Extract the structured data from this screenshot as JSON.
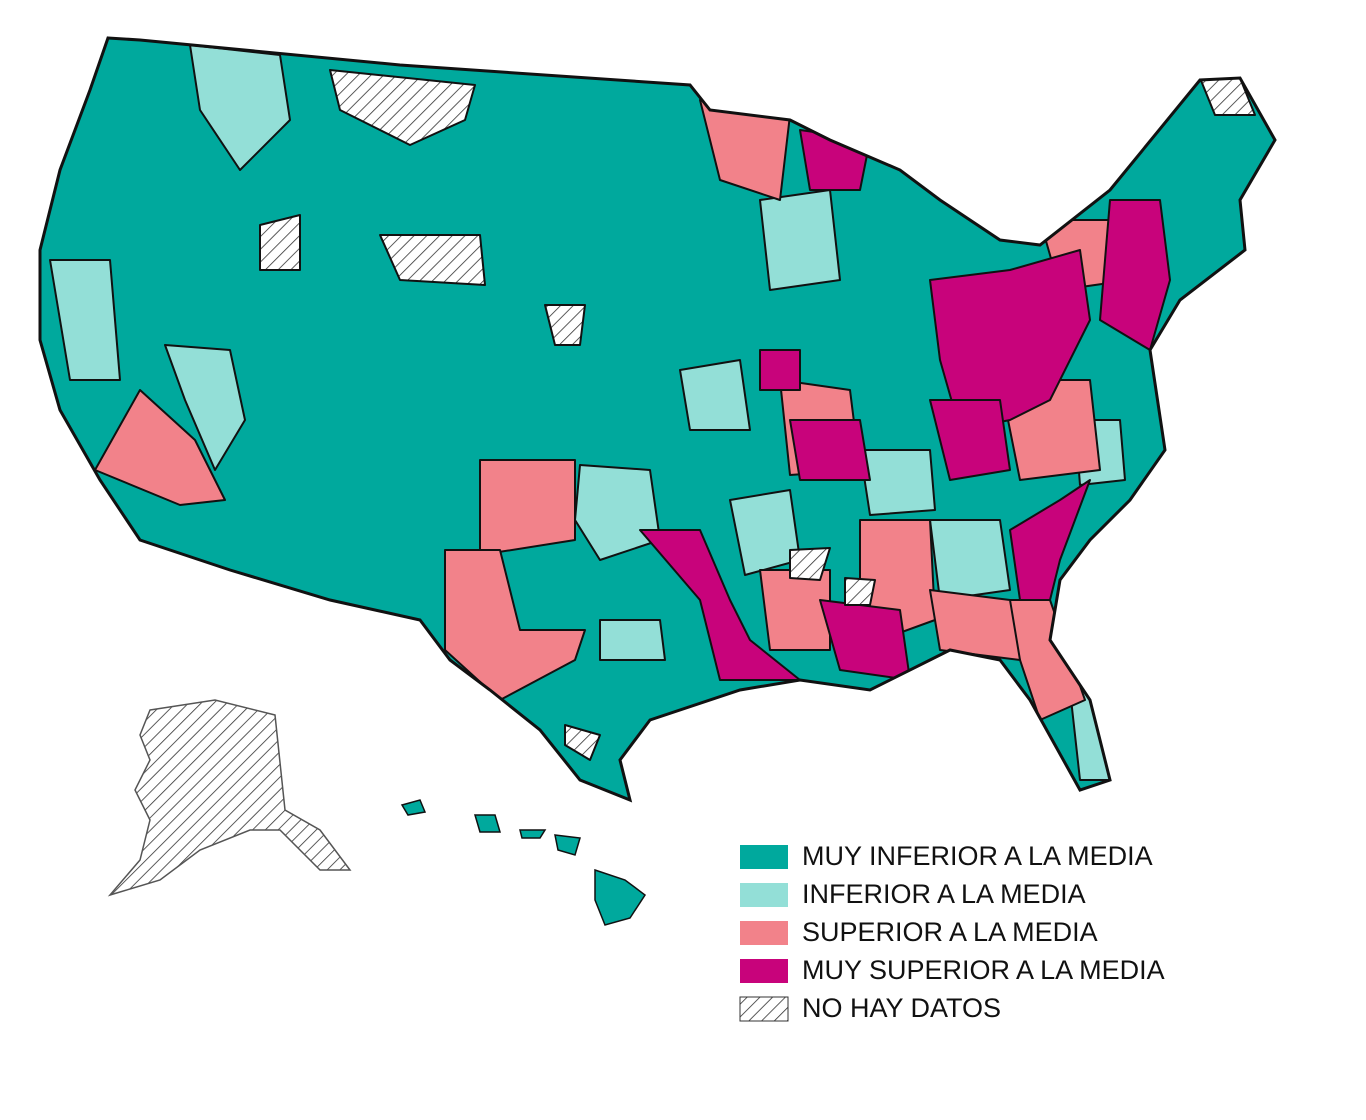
{
  "legend": {
    "items": [
      {
        "label": "MUY INFERIOR A LA MEDIA",
        "color": "#00a99d"
      },
      {
        "label": "INFERIOR A LA MEDIA",
        "color": "#93dfd7"
      },
      {
        "label": "SUPERIOR A LA MEDIA",
        "color": "#f2828a"
      },
      {
        "label": "MUY SUPERIOR A LA MEDIA",
        "color": "#c8037b"
      },
      {
        "label": "NO HAY DATOS",
        "color": "#ffffff",
        "pattern": "hatch"
      }
    ]
  }
}
